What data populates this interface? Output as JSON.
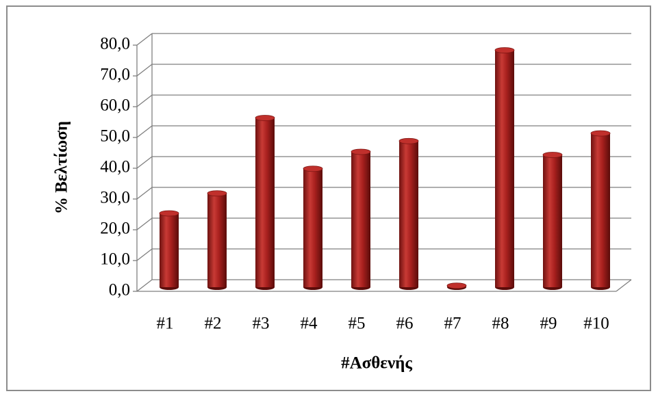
{
  "chart_data": {
    "type": "bar",
    "x_label": "#Ασθενής",
    "y_label": "% Βελτίωση",
    "categories": [
      "#1",
      "#2",
      "#3",
      "#4",
      "#5",
      "#6",
      "#7",
      "#8",
      "#9",
      "#10"
    ],
    "values": [
      24,
      30.5,
      55,
      38.5,
      44,
      47.5,
      0.5,
      77,
      43,
      50
    ],
    "color": "#a8201e",
    "ylim": [
      0,
      80
    ],
    "yticks": [
      {
        "value": 0,
        "label": "0,0"
      },
      {
        "value": 10,
        "label": "10,0"
      },
      {
        "value": 20,
        "label": "20,0"
      },
      {
        "value": 30,
        "label": "30,0"
      },
      {
        "value": 40,
        "label": "40,0"
      },
      {
        "value": 50,
        "label": "50,0"
      },
      {
        "value": 60,
        "label": "60,0"
      },
      {
        "value": 70,
        "label": "70,0"
      },
      {
        "value": 80,
        "label": "80,0"
      }
    ],
    "grid": true
  }
}
